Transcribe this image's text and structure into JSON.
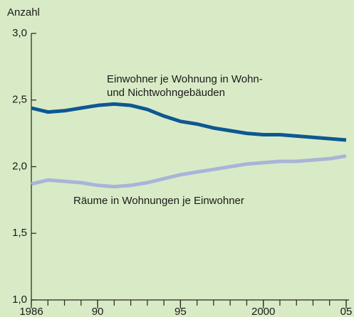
{
  "chart_data": {
    "type": "line",
    "y_label": "Anzahl",
    "x": [
      1986,
      1987,
      1988,
      1989,
      1990,
      1991,
      1992,
      1993,
      1994,
      1995,
      1996,
      1997,
      1998,
      1999,
      2000,
      2001,
      2002,
      2003,
      2004,
      2005
    ],
    "series": [
      {
        "name": "Einwohner je Wohnung in Wohn-\nund Nichtwohngebäuden",
        "color": "#0e5891",
        "values": [
          2.44,
          2.41,
          2.42,
          2.44,
          2.46,
          2.47,
          2.46,
          2.43,
          2.38,
          2.34,
          2.32,
          2.29,
          2.27,
          2.25,
          2.24,
          2.24,
          2.23,
          2.22,
          2.21,
          2.2
        ]
      },
      {
        "name": "Räume in Wohnungen je Einwohner",
        "color": "#a9b4d9",
        "values": [
          1.87,
          1.9,
          1.89,
          1.88,
          1.86,
          1.85,
          1.86,
          1.88,
          1.91,
          1.94,
          1.96,
          1.98,
          2.0,
          2.02,
          2.03,
          2.04,
          2.04,
          2.05,
          2.06,
          2.08
        ]
      }
    ],
    "xlim": [
      1986,
      2005
    ],
    "xticks": [
      1986,
      {
        "value": 1990,
        "label": "90"
      },
      {
        "value": 1995,
        "label": "95"
      },
      2000,
      {
        "value": 2005,
        "label": "05"
      }
    ],
    "ylim": [
      1,
      3
    ],
    "yticks": [
      {
        "value": 1,
        "label": "1,0"
      },
      {
        "value": 1.5,
        "label": "1,5"
      },
      {
        "value": 2,
        "label": "2,0"
      },
      {
        "value": 2.5,
        "label": "2,5"
      },
      {
        "value": 3,
        "label": "3,0"
      }
    ],
    "grid": false
  }
}
